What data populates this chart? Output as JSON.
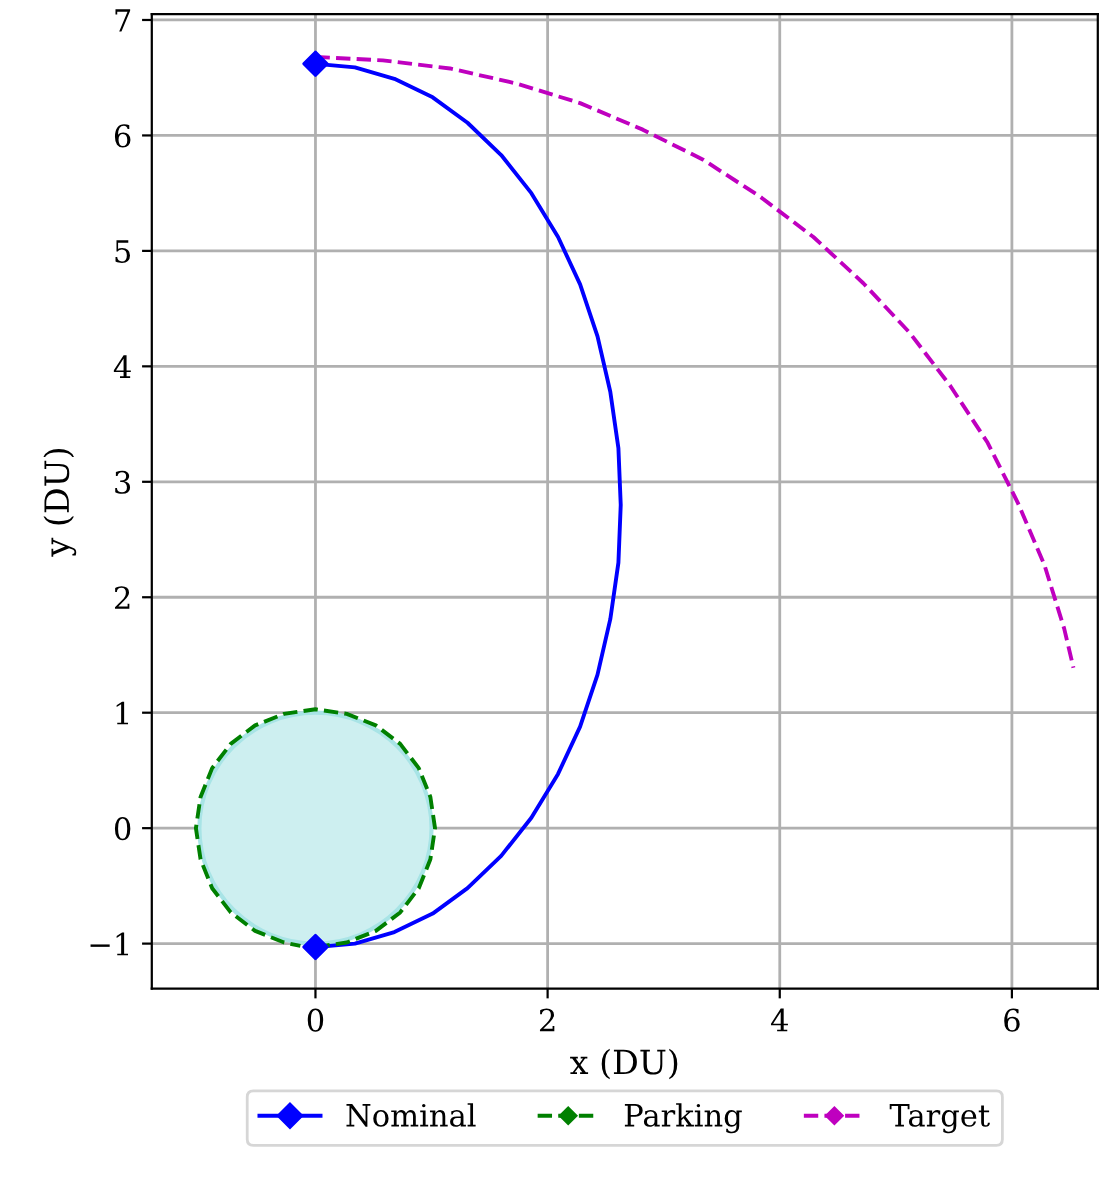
{
  "chart_data": {
    "type": "line",
    "xlabel": "x (DU)",
    "ylabel": "y (DU)",
    "xlim": [
      -1.41,
      6.74
    ],
    "ylim": [
      -1.39,
      7.05
    ],
    "xticks": [
      0,
      2,
      4,
      6
    ],
    "yticks": [
      {
        "value": -1,
        "label": "−1"
      },
      0,
      1,
      2,
      3,
      4,
      5,
      6,
      7
    ],
    "grid": true,
    "legend": "bottom",
    "series": [
      {
        "name": "Nominal",
        "color": "#0000ff",
        "line_style": "solid",
        "marker": "none",
        "x": [
          0,
          0.34,
          0.68,
          1.01,
          1.31,
          1.6,
          1.86,
          2.09,
          2.28,
          2.43,
          2.54,
          2.61,
          2.63,
          2.61,
          2.54,
          2.43,
          2.28,
          2.09,
          1.86,
          1.6,
          1.31,
          1.01,
          0.68,
          0.34,
          0
        ],
        "values": [
          -1.03,
          -1.0,
          -0.9,
          -0.74,
          -0.52,
          -0.24,
          0.09,
          0.47,
          0.88,
          1.33,
          1.81,
          2.3,
          2.8,
          3.29,
          3.78,
          4.26,
          4.71,
          5.12,
          5.5,
          5.83,
          6.11,
          6.33,
          6.49,
          6.59,
          6.62
        ]
      },
      {
        "name": "Parking",
        "color": "#008000",
        "line_style": "dashed",
        "marker": "none",
        "x": [
          0,
          0.27,
          0.52,
          0.73,
          0.89,
          0.99,
          1.03,
          0.99,
          0.89,
          0.73,
          0.52,
          0.27,
          0,
          -0.27,
          -0.52,
          -0.73,
          -0.89,
          -0.99,
          -1.03,
          -0.99,
          -0.89,
          -0.73,
          -0.52,
          -0.27,
          -0.13
        ],
        "values": [
          -1.03,
          -0.99,
          -0.89,
          -0.73,
          -0.52,
          -0.27,
          0,
          0.27,
          0.52,
          0.73,
          0.89,
          0.99,
          1.03,
          0.99,
          0.89,
          0.73,
          0.52,
          0.27,
          0,
          -0.27,
          -0.52,
          -0.73,
          -0.89,
          -0.99,
          -1.02
        ]
      },
      {
        "name": "Target",
        "color": "#bf00bf",
        "line_style": "dashed",
        "marker": "none",
        "x": [
          0,
          0.58,
          1.16,
          1.73,
          2.28,
          2.82,
          3.34,
          3.83,
          4.29,
          4.72,
          5.12,
          5.47,
          5.79,
          6.05,
          6.28,
          6.45,
          6.53
        ],
        "values": [
          6.68,
          6.65,
          6.58,
          6.45,
          6.28,
          6.05,
          5.79,
          5.47,
          5.12,
          4.72,
          4.29,
          3.83,
          3.34,
          2.82,
          2.28,
          1.73,
          1.39
        ]
      },
      {
        "type": "scatter",
        "color": "#0000ff",
        "marker": "diamond",
        "x": [
          0,
          0
        ],
        "values": [
          -1.03,
          6.62
        ]
      }
    ]
  }
}
